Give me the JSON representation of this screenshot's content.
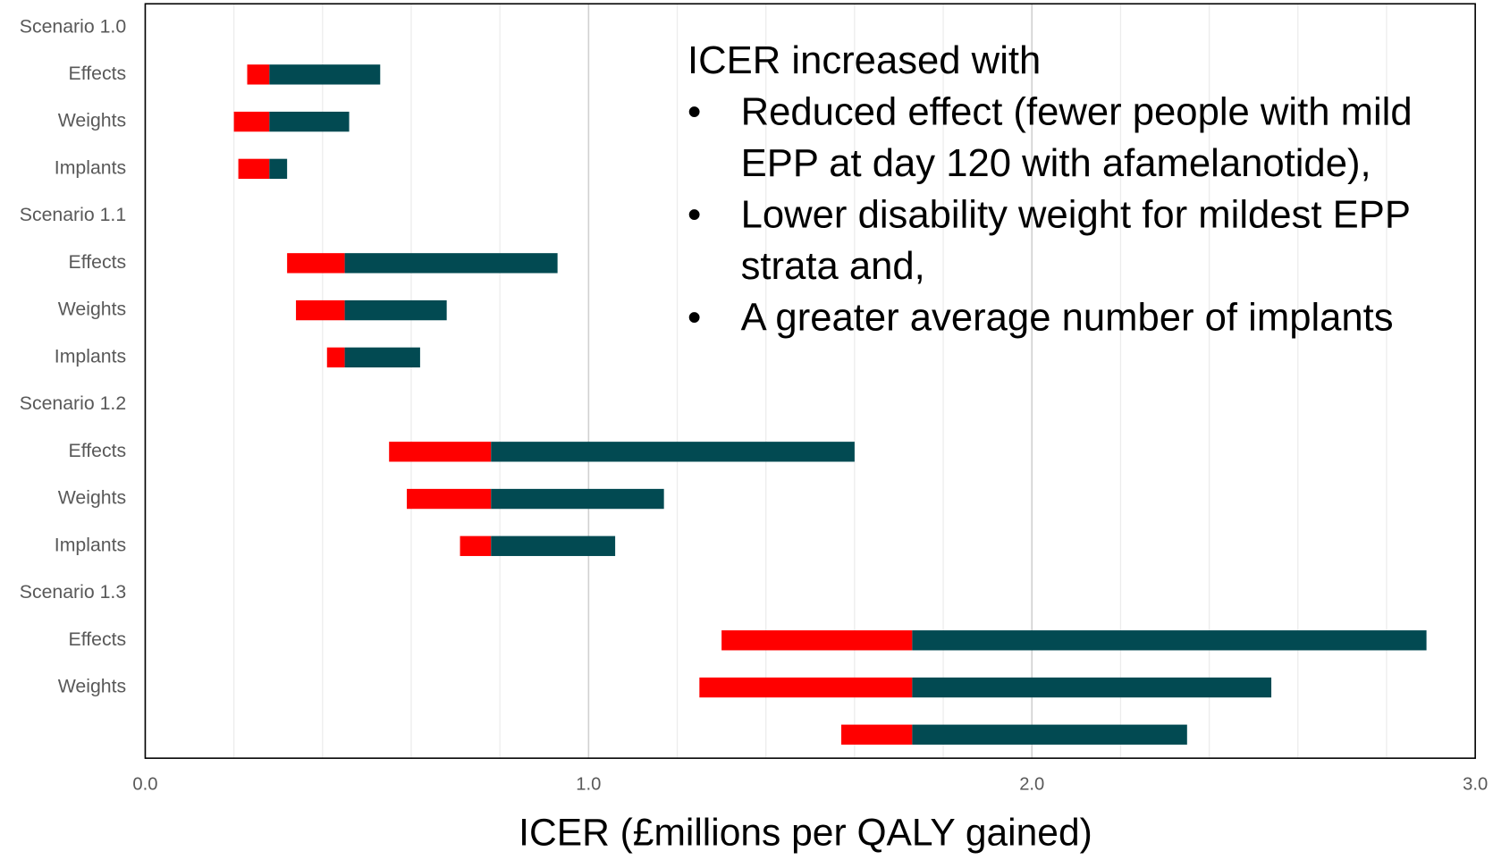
{
  "chart_data": {
    "type": "floating-bar",
    "xlabel": "ICER (£millions per QALY gained)",
    "categories": [
      "Scenario 1.0",
      "Effects",
      "Weights",
      "Implants",
      "Scenario 1.1",
      "Effects",
      "Weights",
      "Implants",
      "Scenario 1.2",
      "Effects",
      "Weights",
      "Implants",
      "Scenario 1.3",
      "Effects",
      "Weights",
      null
    ],
    "low": [
      null,
      0.23,
      0.2,
      0.21,
      null,
      0.32,
      0.34,
      0.41,
      null,
      0.55,
      0.59,
      0.71,
      null,
      1.3,
      1.25,
      1.57
    ],
    "base": [
      null,
      0.28,
      0.28,
      0.28,
      null,
      0.45,
      0.45,
      0.45,
      null,
      0.78,
      0.78,
      0.78,
      null,
      1.73,
      1.73,
      1.73
    ],
    "high": [
      null,
      0.53,
      0.46,
      0.32,
      null,
      0.93,
      0.68,
      0.62,
      null,
      1.6,
      1.17,
      1.06,
      null,
      2.89,
      2.54,
      2.35
    ],
    "low_color": "#ff0000",
    "high_color": "#024a52",
    "xlim": [
      0,
      3
    ],
    "xticks": [
      {
        "value": 0,
        "label": "0.0"
      },
      {
        "value": 1,
        "label": "1.0"
      },
      {
        "value": 2,
        "label": "2.0"
      },
      {
        "value": 3,
        "label": "3.0"
      }
    ],
    "xminorticks": [
      0.2,
      0.4,
      0.6,
      0.8,
      1.2,
      1.4,
      1.6,
      1.8,
      2.2,
      2.4,
      2.6,
      2.8
    ],
    "grid": true,
    "annotation": {
      "heading": "ICER increased with",
      "bullets": [
        "Reduced effect (fewer people with mild EPP at day 120 with afamelanotide),",
        "Lower disability weight for mildest EPP strata and,",
        "A greater average number of implants"
      ]
    }
  }
}
